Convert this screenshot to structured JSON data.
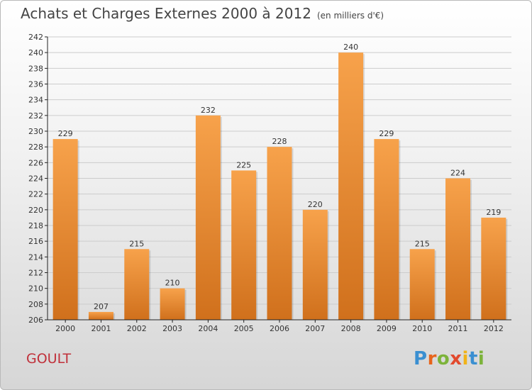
{
  "title": "Achats et Charges Externes 2000 à 2012",
  "unit": "(en milliers d'€)",
  "commune": "GOULT",
  "logo": {
    "letters": [
      "P",
      "r",
      "o",
      "x",
      "i",
      "t",
      "i"
    ],
    "colors": [
      "#3a8fd1",
      "#e7641c",
      "#7cb33a",
      "#e24a2e",
      "#f1b319",
      "#3a8fd1",
      "#7cb33a"
    ]
  },
  "colors": {
    "bar_top": "#f7a24b",
    "bar_bottom": "#d0701c",
    "grid": "#cccccc",
    "axis": "#222222",
    "text": "#333333"
  },
  "chart_data": {
    "type": "bar",
    "categories": [
      "2000",
      "2001",
      "2002",
      "2003",
      "2004",
      "2005",
      "2006",
      "2007",
      "2008",
      "2009",
      "2010",
      "2011",
      "2012"
    ],
    "values": [
      229,
      207,
      215,
      210,
      232,
      225,
      228,
      220,
      240,
      229,
      215,
      224,
      219
    ],
    "ylim": [
      206,
      242
    ],
    "yticks": [
      206,
      208,
      210,
      212,
      214,
      216,
      218,
      220,
      222,
      224,
      226,
      228,
      230,
      232,
      234,
      236,
      238,
      240,
      242
    ],
    "grid": true,
    "data_labels": true
  }
}
